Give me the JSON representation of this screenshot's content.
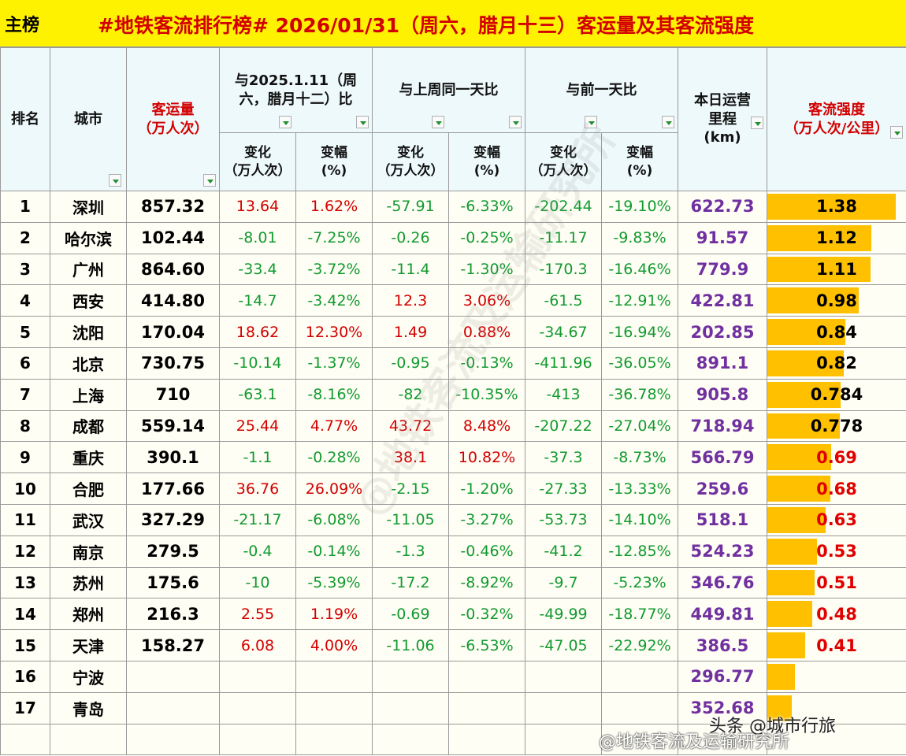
{
  "header": {
    "tag": "主榜",
    "title": "#地铁客流排行榜# 2026/01/31（周六，腊月十三）客运量及其客流强度"
  },
  "columns": {
    "rank": "排名",
    "city": "城市",
    "volume_line1": "客运量",
    "volume_line2": "（万人次）",
    "yoy_group_line1": "与2025.1.11（周",
    "yoy_group_line2": "六，腊月十二）比",
    "week_group": "与上周同一天比",
    "day_group": "与前一天比",
    "length_line1": "本日运营",
    "length_line2": "里程",
    "length_line3": "(km)",
    "intensity_line1": "客流强度",
    "intensity_line2": "（万人次/公里）",
    "change_line1": "变化",
    "change_line2": "（万人次）",
    "pct_line1": "变幅",
    "pct_line2": "(%)"
  },
  "rows": [
    {
      "rank": "1",
      "city": "深圳",
      "volume": "857.32",
      "yoy_change": "13.64",
      "yoy_pct": "1.62%",
      "wow_change": "-57.91",
      "wow_pct": "-6.33%",
      "dod_change": "-202.44",
      "dod_pct": "-19.10%",
      "length": "622.73",
      "intensity": "1.38",
      "intensity_value": 1.38
    },
    {
      "rank": "2",
      "city": "哈尔滨",
      "volume": "102.44",
      "yoy_change": "-8.01",
      "yoy_pct": "-7.25%",
      "wow_change": "-0.26",
      "wow_pct": "-0.25%",
      "dod_change": "-11.17",
      "dod_pct": "-9.83%",
      "length": "91.57",
      "intensity": "1.12",
      "intensity_value": 1.12
    },
    {
      "rank": "3",
      "city": "广州",
      "volume": "864.60",
      "yoy_change": "-33.4",
      "yoy_pct": "-3.72%",
      "wow_change": "-11.4",
      "wow_pct": "-1.30%",
      "dod_change": "-170.3",
      "dod_pct": "-16.46%",
      "length": "779.9",
      "intensity": "1.11",
      "intensity_value": 1.11
    },
    {
      "rank": "4",
      "city": "西安",
      "volume": "414.80",
      "yoy_change": "-14.7",
      "yoy_pct": "-3.42%",
      "wow_change": "12.3",
      "wow_pct": "3.06%",
      "dod_change": "-61.5",
      "dod_pct": "-12.91%",
      "length": "422.81",
      "intensity": "0.98",
      "intensity_value": 0.98
    },
    {
      "rank": "5",
      "city": "沈阳",
      "volume": "170.04",
      "yoy_change": "18.62",
      "yoy_pct": "12.30%",
      "wow_change": "1.49",
      "wow_pct": "0.88%",
      "dod_change": "-34.67",
      "dod_pct": "-16.94%",
      "length": "202.85",
      "intensity": "0.84",
      "intensity_value": 0.84
    },
    {
      "rank": "6",
      "city": "北京",
      "volume": "730.75",
      "yoy_change": "-10.14",
      "yoy_pct": "-1.37%",
      "wow_change": "-0.95",
      "wow_pct": "-0.13%",
      "dod_change": "-411.96",
      "dod_pct": "-36.05%",
      "length": "891.1",
      "intensity": "0.82",
      "intensity_value": 0.82
    },
    {
      "rank": "7",
      "city": "上海",
      "volume": "710",
      "yoy_change": "-63.1",
      "yoy_pct": "-8.16%",
      "wow_change": "-82",
      "wow_pct": "-10.35%",
      "dod_change": "-413",
      "dod_pct": "-36.78%",
      "length": "905.8",
      "intensity": "0.784",
      "intensity_value": 0.784
    },
    {
      "rank": "8",
      "city": "成都",
      "volume": "559.14",
      "yoy_change": "25.44",
      "yoy_pct": "4.77%",
      "wow_change": "43.72",
      "wow_pct": "8.48%",
      "dod_change": "-207.22",
      "dod_pct": "-27.04%",
      "length": "718.94",
      "intensity": "0.778",
      "intensity_value": 0.778
    },
    {
      "rank": "9",
      "city": "重庆",
      "volume": "390.1",
      "yoy_change": "-1.1",
      "yoy_pct": "-0.28%",
      "wow_change": "38.1",
      "wow_pct": "10.82%",
      "dod_change": "-37.3",
      "dod_pct": "-8.73%",
      "length": "566.79",
      "intensity": "0.69",
      "intensity_value": 0.69
    },
    {
      "rank": "10",
      "city": "合肥",
      "volume": "177.66",
      "yoy_change": "36.76",
      "yoy_pct": "26.09%",
      "wow_change": "-2.15",
      "wow_pct": "-1.20%",
      "dod_change": "-27.33",
      "dod_pct": "-13.33%",
      "length": "259.6",
      "intensity": "0.68",
      "intensity_value": 0.68
    },
    {
      "rank": "11",
      "city": "武汉",
      "volume": "327.29",
      "yoy_change": "-21.17",
      "yoy_pct": "-6.08%",
      "wow_change": "-11.05",
      "wow_pct": "-3.27%",
      "dod_change": "-53.73",
      "dod_pct": "-14.10%",
      "length": "518.1",
      "intensity": "0.63",
      "intensity_value": 0.63
    },
    {
      "rank": "12",
      "city": "南京",
      "volume": "279.5",
      "yoy_change": "-0.4",
      "yoy_pct": "-0.14%",
      "wow_change": "-1.3",
      "wow_pct": "-0.46%",
      "dod_change": "-41.2",
      "dod_pct": "-12.85%",
      "length": "524.23",
      "intensity": "0.53",
      "intensity_value": 0.53
    },
    {
      "rank": "13",
      "city": "苏州",
      "volume": "175.6",
      "yoy_change": "-10",
      "yoy_pct": "-5.39%",
      "wow_change": "-17.2",
      "wow_pct": "-8.92%",
      "dod_change": "-9.7",
      "dod_pct": "-5.23%",
      "length": "346.76",
      "intensity": "0.51",
      "intensity_value": 0.51
    },
    {
      "rank": "14",
      "city": "郑州",
      "volume": "216.3",
      "yoy_change": "2.55",
      "yoy_pct": "1.19%",
      "wow_change": "-0.69",
      "wow_pct": "-0.32%",
      "dod_change": "-49.99",
      "dod_pct": "-18.77%",
      "length": "449.81",
      "intensity": "0.48",
      "intensity_value": 0.48
    },
    {
      "rank": "15",
      "city": "天津",
      "volume": "158.27",
      "yoy_change": "6.08",
      "yoy_pct": "4.00%",
      "wow_change": "-11.06",
      "wow_pct": "-6.53%",
      "dod_change": "-47.05",
      "dod_pct": "-22.92%",
      "length": "386.5",
      "intensity": "0.41",
      "intensity_value": 0.41
    },
    {
      "rank": "16",
      "city": "宁波",
      "volume": "",
      "yoy_change": "",
      "yoy_pct": "",
      "wow_change": "",
      "wow_pct": "",
      "dod_change": "",
      "dod_pct": "",
      "length": "296.77",
      "intensity": "",
      "intensity_value": 0.3
    },
    {
      "rank": "17",
      "city": "青岛",
      "volume": "",
      "yoy_change": "",
      "yoy_pct": "",
      "wow_change": "",
      "wow_pct": "",
      "dod_change": "",
      "dod_pct": "",
      "length": "352.68",
      "intensity": "",
      "intensity_value": 0.26
    },
    {
      "rank": "",
      "city": "",
      "volume": "",
      "yoy_change": "",
      "yoy_pct": "",
      "wow_change": "",
      "wow_pct": "",
      "dod_change": "",
      "dod_pct": "",
      "length": "",
      "intensity": "",
      "intensity_value": 0
    }
  ],
  "intensity_bar_max": 1.5,
  "watermark": "@地铁客流及运输研究所",
  "credit_toutiao": "头条 @城市行旅",
  "credit_weibo": "@地铁客流及运输研究所"
}
